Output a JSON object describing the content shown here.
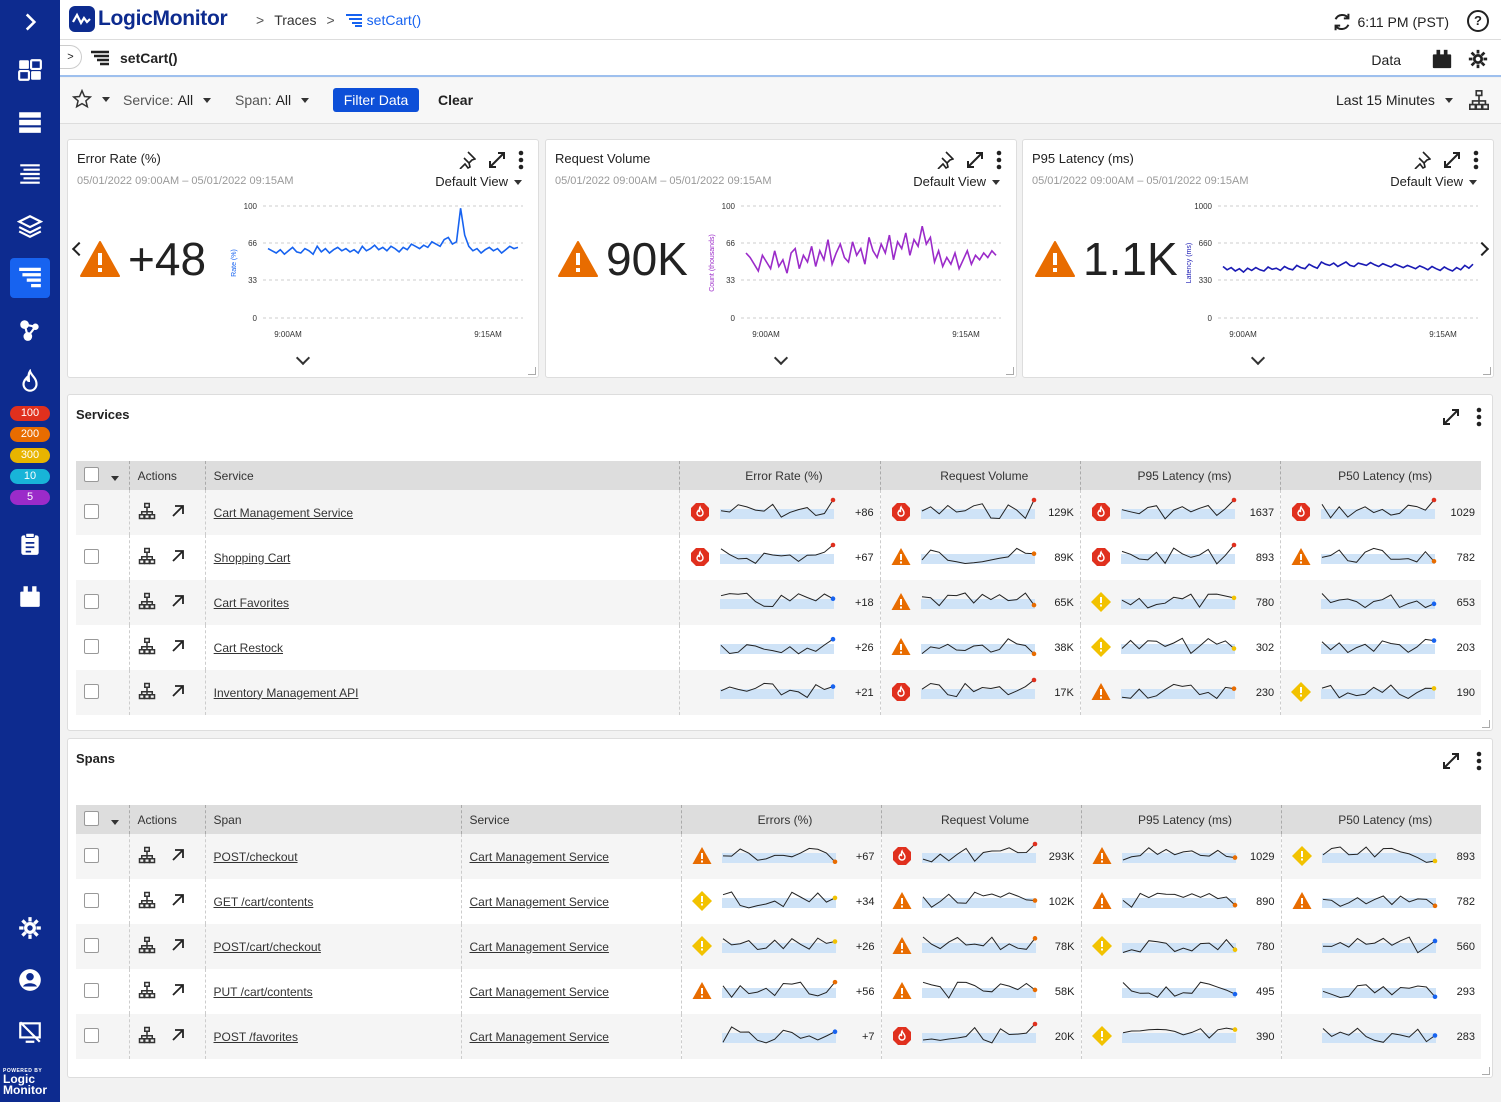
{
  "app": {
    "brand": "LogicMonitor",
    "breadcrumb": [
      "Traces",
      "setCart()"
    ],
    "time": "6:11 PM (PST)",
    "help": "?"
  },
  "sidebar": {
    "badges": [
      "100",
      "200",
      "300",
      "10",
      "5"
    ],
    "badge_colors": [
      "#e0301e",
      "#e86c00",
      "#e8b400",
      "#18b4d8",
      "#9b2bc9"
    ],
    "powered": "POWERED BY",
    "powered_brand": "Logic Monitor"
  },
  "title_bar": {
    "title": "setCart()",
    "data_label": "Data"
  },
  "filters": {
    "service_label": "Service:",
    "service_value": "All",
    "span_label": "Span:",
    "span_value": "All",
    "filter_btn": "Filter Data",
    "clear_btn": "Clear",
    "range": "Last 15 Minutes"
  },
  "widgets": [
    {
      "title": "Error Rate (%)",
      "dates": "05/01/2022 09:00AM – 05/01/2022 09:15AM",
      "view": "Default View",
      "value": "+48",
      "color": "#1763f0",
      "ylabel": "Rate (%)",
      "yticks": [
        "100",
        "66",
        "33",
        "0"
      ],
      "xticks": [
        "9:00AM",
        "9:15AM"
      ],
      "series": [
        62,
        60,
        58,
        61,
        57,
        60,
        63,
        59,
        58,
        62,
        60,
        57,
        64,
        59,
        62,
        58,
        61,
        63,
        60,
        62,
        59,
        61,
        58,
        64,
        60,
        62,
        65,
        61,
        63,
        60,
        64,
        62,
        59,
        63,
        61,
        66,
        64,
        62,
        65,
        63,
        68,
        66,
        64,
        70,
        72,
        66,
        68,
        98,
        74,
        64,
        60,
        62,
        58,
        61,
        63,
        60,
        62,
        58,
        61,
        64,
        62,
        63
      ]
    },
    {
      "title": "Request Volume",
      "dates": "05/01/2022 09:00AM – 05/01/2022 09:15AM",
      "view": "Default View",
      "value": "90K",
      "color": "#9b2bc9",
      "ylabel": "Count (thousands)",
      "yticks": [
        "100",
        "66",
        "33",
        "0"
      ],
      "xticks": [
        "9:00AM",
        "9:15AM"
      ],
      "series": [
        58,
        54,
        48,
        42,
        56,
        50,
        44,
        60,
        46,
        52,
        40,
        58,
        62,
        44,
        56,
        50,
        64,
        46,
        60,
        52,
        70,
        48,
        58,
        66,
        54,
        50,
        68,
        56,
        62,
        48,
        72,
        60,
        54,
        66,
        58,
        74,
        52,
        68,
        62,
        76,
        56,
        70,
        64,
        82,
        66,
        72,
        50,
        60,
        46,
        54,
        48,
        58,
        44,
        52,
        60,
        48,
        56,
        52,
        58,
        54,
        60,
        56
      ]
    },
    {
      "title": "P95 Latency (ms)",
      "dates": "05/01/2022 09:00AM – 05/01/2022 09:15AM",
      "view": "Default View",
      "value": "1.1K",
      "color": "#1a1ab4",
      "ylabel": "Latency (ms)",
      "yticks": [
        "1000",
        "660",
        "330",
        "0"
      ],
      "xticks": [
        "9:00AM",
        "9:15AM"
      ],
      "series": [
        460,
        430,
        450,
        420,
        440,
        410,
        445,
        425,
        450,
        430,
        420,
        455,
        435,
        445,
        425,
        460,
        440,
        430,
        470,
        450,
        440,
        480,
        460,
        445,
        500,
        480,
        470,
        490,
        460,
        480,
        500,
        470,
        460,
        490,
        480,
        470,
        495,
        475,
        460,
        485,
        470,
        455,
        480,
        465,
        450,
        470,
        455,
        440,
        465,
        450,
        430,
        460,
        440,
        425,
        455,
        435,
        420,
        450,
        430,
        470,
        445,
        480
      ]
    }
  ],
  "services": {
    "title": "Services",
    "headers": [
      "Actions",
      "Service",
      "Error Rate (%)",
      "Request Volume",
      "P95 Latency (ms)",
      "P50 Latency (ms)"
    ],
    "rows": [
      {
        "name": "Cart Management Service",
        "metrics": [
          {
            "status": "critical",
            "value": "+86"
          },
          {
            "status": "critical",
            "value": "129K"
          },
          {
            "status": "critical",
            "value": "1637"
          },
          {
            "status": "critical",
            "value": "1029"
          }
        ]
      },
      {
        "name": "Shopping Cart",
        "metrics": [
          {
            "status": "critical",
            "value": "+67"
          },
          {
            "status": "error",
            "value": "89K"
          },
          {
            "status": "critical",
            "value": "893"
          },
          {
            "status": "error",
            "value": "782"
          }
        ]
      },
      {
        "name": "Cart Favorites",
        "metrics": [
          {
            "status": "none",
            "value": "+18"
          },
          {
            "status": "error",
            "value": "65K"
          },
          {
            "status": "warning",
            "value": "780"
          },
          {
            "status": "none",
            "value": "653"
          }
        ]
      },
      {
        "name": "Cart Restock",
        "metrics": [
          {
            "status": "none",
            "value": "+26"
          },
          {
            "status": "error",
            "value": "38K"
          },
          {
            "status": "warning",
            "value": "302"
          },
          {
            "status": "none",
            "value": "203"
          }
        ]
      },
      {
        "name": "Inventory Management API",
        "metrics": [
          {
            "status": "none",
            "value": "+21"
          },
          {
            "status": "critical",
            "value": "17K"
          },
          {
            "status": "error",
            "value": "230"
          },
          {
            "status": "warning",
            "value": "190"
          }
        ]
      }
    ]
  },
  "spans": {
    "title": "Spans",
    "headers": [
      "Actions",
      "Span",
      "Service",
      "Errors (%)",
      "Request Volume",
      "P95 Latency (ms)",
      "P50 Latency (ms)"
    ],
    "rows": [
      {
        "name": "POST/checkout",
        "service": "Cart Management Service",
        "metrics": [
          {
            "status": "error",
            "value": "+67"
          },
          {
            "status": "critical",
            "value": "293K"
          },
          {
            "status": "error",
            "value": "1029"
          },
          {
            "status": "warning",
            "value": "893"
          }
        ]
      },
      {
        "name": "GET /cart/contents",
        "service": "Cart Management Service",
        "metrics": [
          {
            "status": "warning",
            "value": "+34"
          },
          {
            "status": "error",
            "value": "102K"
          },
          {
            "status": "error",
            "value": "890"
          },
          {
            "status": "error",
            "value": "782"
          }
        ]
      },
      {
        "name": "POST/cart/checkout",
        "service": "Cart Management Service",
        "metrics": [
          {
            "status": "warning",
            "value": "+26"
          },
          {
            "status": "error",
            "value": "78K"
          },
          {
            "status": "warning",
            "value": "780"
          },
          {
            "status": "none",
            "value": "560"
          }
        ]
      },
      {
        "name": "PUT /cart/contents",
        "service": "Cart Management Service",
        "metrics": [
          {
            "status": "error",
            "value": "+56"
          },
          {
            "status": "error",
            "value": "58K"
          },
          {
            "status": "none",
            "value": "495"
          },
          {
            "status": "none",
            "value": "293"
          }
        ]
      },
      {
        "name": "POST /favorites",
        "service": "Cart Management Service",
        "metrics": [
          {
            "status": "none",
            "value": "+7"
          },
          {
            "status": "critical",
            "value": "20K"
          },
          {
            "status": "warning",
            "value": "390"
          },
          {
            "status": "none",
            "value": "283"
          }
        ]
      }
    ]
  }
}
